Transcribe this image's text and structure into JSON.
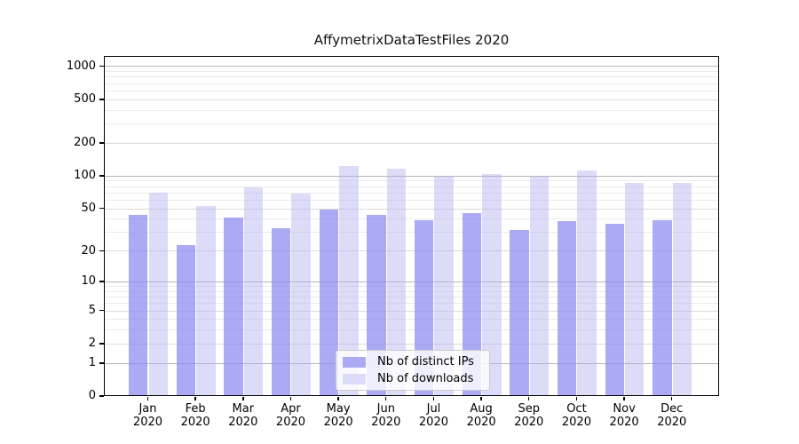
{
  "chart_data": {
    "type": "bar",
    "title": "AffymetrixDataTestFiles 2020",
    "categories": [
      "Jan",
      "Feb",
      "Mar",
      "Apr",
      "May",
      "Jun",
      "Jul",
      "Aug",
      "Sep",
      "Oct",
      "Nov",
      "Dec"
    ],
    "category_year": "2020",
    "series": [
      {
        "name": "Nb of distinct IPs",
        "values": [
          43,
          22,
          40,
          32,
          48,
          43,
          38,
          44,
          31,
          37,
          35,
          38
        ]
      },
      {
        "name": "Nb of downloads",
        "values": [
          68,
          52,
          76,
          67,
          120,
          113,
          97,
          102,
          96,
          109,
          84,
          85
        ]
      }
    ],
    "yticks": [
      0,
      1,
      2,
      5,
      10,
      20,
      50,
      100,
      200,
      500,
      1000
    ],
    "scale": "log1p",
    "ylim": [
      0,
      1230
    ],
    "grid": true,
    "legend_position": "lower center inside",
    "colors": {
      "ips_bar": "rgba(141,141,242,0.75)",
      "ips_solid": "#aaaaf5",
      "downloads_bar": "rgba(177,177,242,0.45)",
      "downloads_solid": "#dcdcf9",
      "grid_major": "#b5b5b5",
      "grid_sub": "#dadada",
      "grid_minor": "#ebebeb",
      "axis": "#000000"
    }
  }
}
